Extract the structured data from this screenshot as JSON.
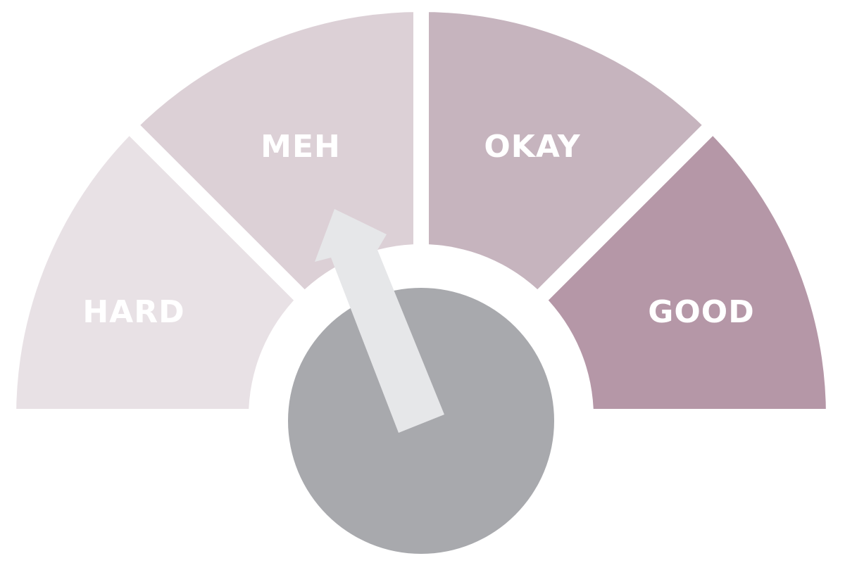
{
  "gauge": {
    "segments": [
      {
        "label": "HARD",
        "color": "#e8e1e5"
      },
      {
        "label": "MEH",
        "color": "#dcd0d6"
      },
      {
        "label": "OKAY",
        "color": "#c6b4be"
      },
      {
        "label": "GOOD",
        "color": "#b597a7"
      }
    ],
    "hub_color": "#a8a9ad",
    "needle_color": "#e6e7e9",
    "needle_points_to": "MEH"
  }
}
